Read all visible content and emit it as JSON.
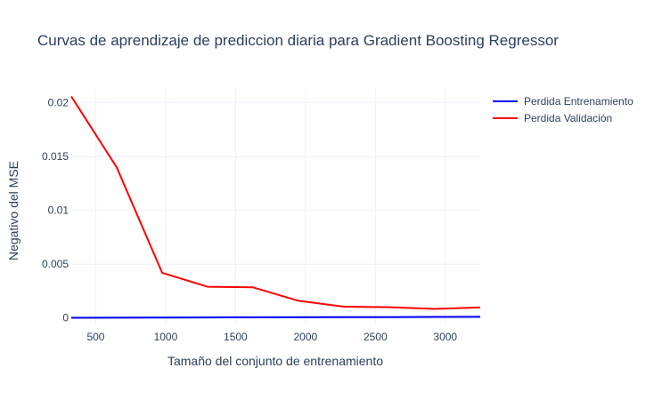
{
  "chart_data": {
    "type": "line",
    "title": "Curvas de aprendizaje de prediccion diaria para Gradient Boosting Regressor",
    "xlabel": "Tamaño del conjunto de entrenamiento",
    "ylabel": "Negativo del MSE",
    "xlim": [
      325,
      3250
    ],
    "ylim": [
      -0.0006,
      0.0213
    ],
    "x_ticks": [
      500,
      1000,
      1500,
      2000,
      2500,
      3000
    ],
    "x_tick_labels": [
      "500",
      "1000",
      "1500",
      "2000",
      "2500",
      "3000"
    ],
    "y_ticks": [
      0,
      0.005,
      0.01,
      0.015,
      0.02
    ],
    "y_tick_labels": [
      "0",
      "0.005",
      "0.01",
      "0.015",
      "0.02"
    ],
    "grid": true,
    "legend_position": "top-right",
    "series": [
      {
        "name": "Perdida Entrenamiento",
        "color": "#0000ff",
        "x": [
          325,
          650,
          975,
          1300,
          1625,
          1950,
          2275,
          2600,
          2925,
          3250
        ],
        "y": [
          2e-05,
          3e-05,
          4e-05,
          5e-05,
          6e-05,
          7e-05,
          8e-05,
          9e-05,
          0.0001,
          0.00011
        ]
      },
      {
        "name": "Perdida Validación",
        "color": "#ff0000",
        "x": [
          325,
          650,
          975,
          1300,
          1625,
          1950,
          2275,
          2600,
          2925,
          3250
        ],
        "y": [
          0.0206,
          0.014,
          0.0042,
          0.0029,
          0.00285,
          0.0016,
          0.00105,
          0.001,
          0.00085,
          0.00098
        ]
      }
    ]
  }
}
